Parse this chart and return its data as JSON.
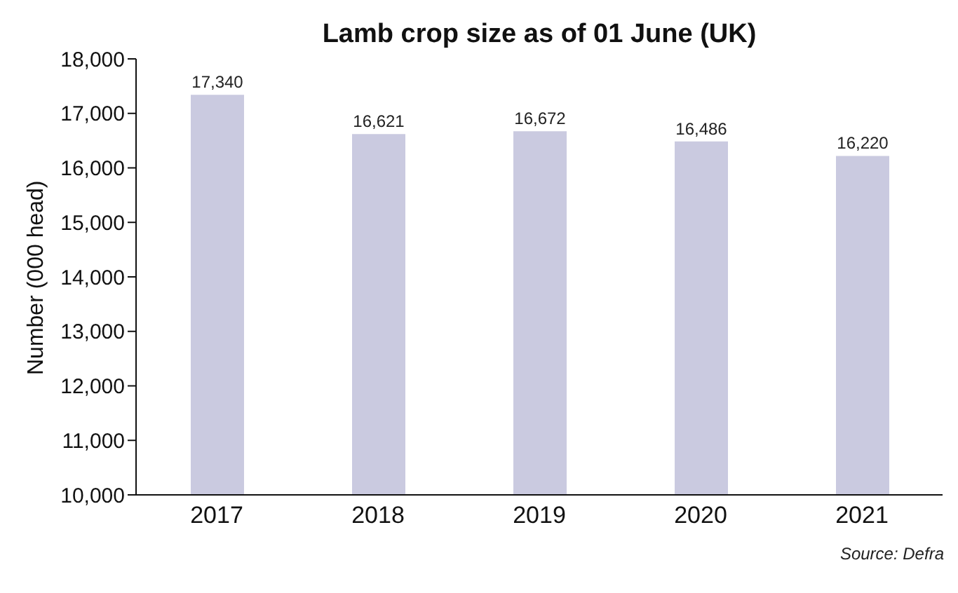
{
  "chart_data": {
    "type": "bar",
    "title": "Lamb crop size as of 01 June (UK)",
    "ylabel": "Number (000 head)",
    "categories": [
      "2017",
      "2018",
      "2019",
      "2020",
      "2021"
    ],
    "values": [
      17340,
      16621,
      16672,
      16486,
      16220
    ],
    "color": "#cacae0",
    "value_labels": [
      "17,340",
      "16,621",
      "16,672",
      "16,486",
      "16,220"
    ],
    "ylim": [
      10000,
      18000
    ],
    "yticks": [
      {
        "value": 10000,
        "label": "10,000"
      },
      {
        "value": 11000,
        "label": "11,000"
      },
      {
        "value": 12000,
        "label": "12,000"
      },
      {
        "value": 13000,
        "label": "13,000"
      },
      {
        "value": 14000,
        "label": "14,000"
      },
      {
        "value": 15000,
        "label": "15,000"
      },
      {
        "value": 16000,
        "label": "16,000"
      },
      {
        "value": 17000,
        "label": "17,000"
      },
      {
        "value": 18000,
        "label": "18,000"
      }
    ],
    "grid": false,
    "annotations": [
      "Source: Defra"
    ]
  }
}
